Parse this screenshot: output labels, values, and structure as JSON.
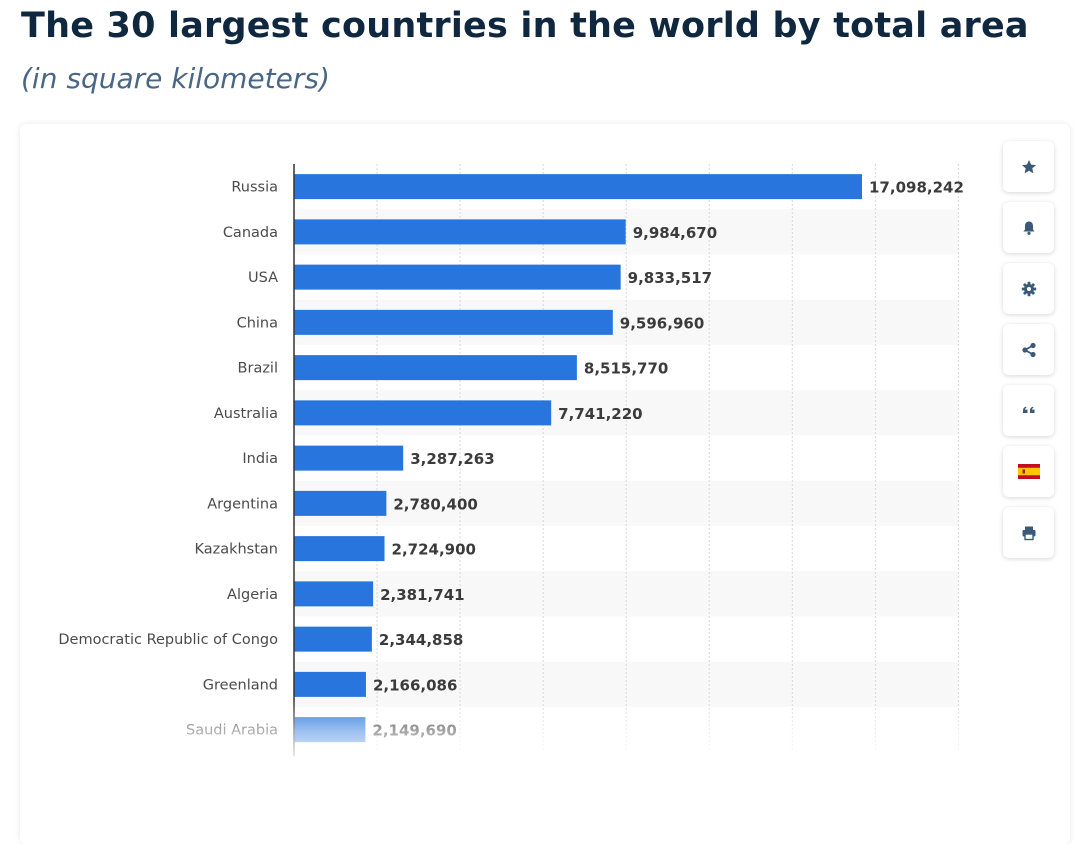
{
  "header": {
    "title": "The 30 largest countries in the world by total area",
    "subtitle": "(in square kilometers)"
  },
  "toolbar": {
    "buttons": [
      {
        "name": "favorite-button",
        "icon": "star-icon"
      },
      {
        "name": "notification-button",
        "icon": "bell-icon"
      },
      {
        "name": "settings-button",
        "icon": "gear-icon"
      },
      {
        "name": "share-button",
        "icon": "share-icon"
      },
      {
        "name": "cite-button",
        "icon": "quote-icon"
      },
      {
        "name": "language-button",
        "icon": "spain-flag-icon"
      },
      {
        "name": "print-button",
        "icon": "printer-icon"
      }
    ]
  },
  "colors": {
    "bar": "#2876dd",
    "title": "#0f2840",
    "subtitle": "#4a6686",
    "icon": "#3b5a78"
  },
  "chart_data": {
    "type": "bar",
    "orientation": "horizontal",
    "categories": [
      "Russia",
      "Canada",
      "USA",
      "China",
      "Brazil",
      "Australia",
      "India",
      "Argentina",
      "Kazakhstan",
      "Algeria",
      "Democratic Republic of Congo",
      "Greenland",
      "Saudi Arabia"
    ],
    "values": [
      17098242,
      9984670,
      9833517,
      9596960,
      8515770,
      7741220,
      3287263,
      2780400,
      2724900,
      2381741,
      2344858,
      2166086,
      2149690
    ],
    "value_labels": [
      "17,098,242",
      "9,984,670",
      "9,833,517",
      "9,596,960",
      "8,515,770",
      "7,741,220",
      "3,287,263",
      "2,780,400",
      "2,724,900",
      "2,381,741",
      "2,344,858",
      "2,166,086",
      "2,149,690"
    ],
    "xlim": [
      0,
      20000000
    ],
    "grid": true
  }
}
